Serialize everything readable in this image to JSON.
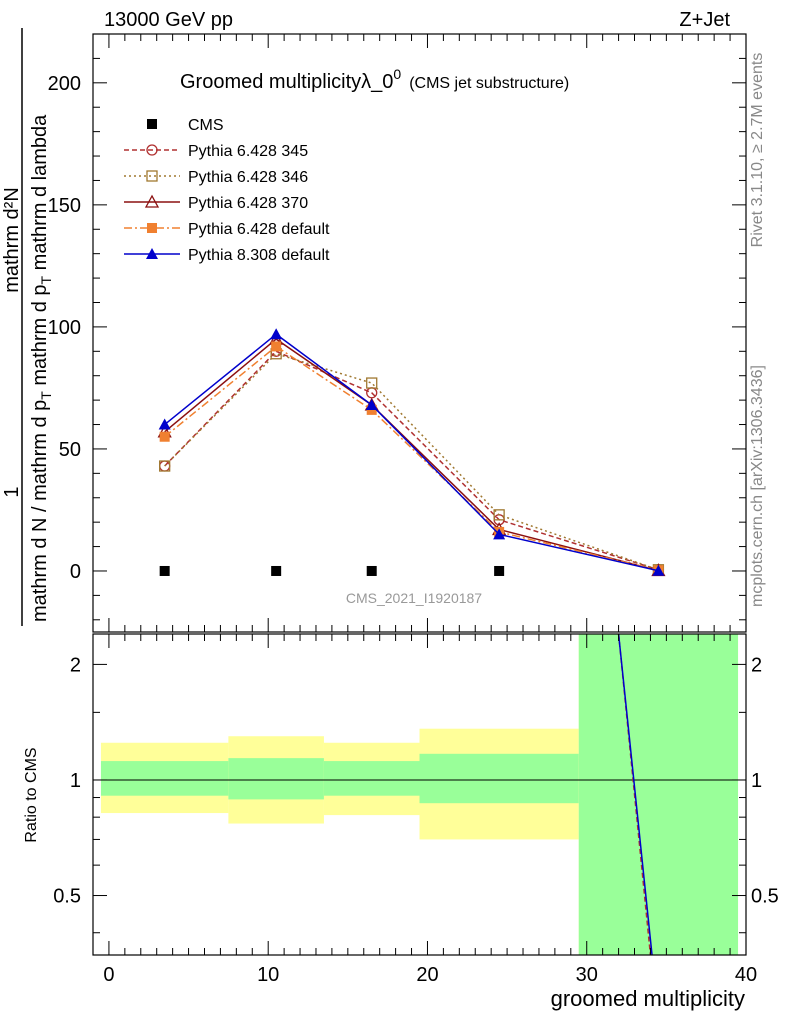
{
  "header": {
    "left": "13000 GeV pp",
    "right": "Z+Jet"
  },
  "title": {
    "main": "Groomed multiplicityλ_0",
    "superscript": "0",
    "sub": "(CMS jet substructure)"
  },
  "side_label_top": "Rivet 3.1.10, ≥ 2.7M events",
  "side_label_bottom": "mcplots.cern.ch [arXiv:1306.3436]",
  "watermark": "CMS_2021_I1920187",
  "ylabel_parts": {
    "numerator": "1",
    "num_tail": "mathrm d²N",
    "main": "mathrm d N / mathrm d p",
    "sub_t": "T",
    "main_tail": " mathrm d p",
    "sub_t2": "T",
    "main_tail2": " mathrm d lambda"
  },
  "ratio_ylabel": "Ratio to CMS",
  "xlabel": "groomed multiplicity",
  "colors": {
    "cms": "#000000",
    "p6_345": "#b03030",
    "p6_346": "#a07830",
    "p6_370": "#8b1010",
    "p6_default": "#f08030",
    "p8_default": "#0000cc",
    "band_inner": "#99ff99",
    "band_outer": "#ffff99"
  },
  "chart_data": [
    {
      "type": "line",
      "panel": "main",
      "xlim": [
        -1,
        40
      ],
      "ylim": [
        -25,
        220
      ],
      "yticks": [
        0,
        50,
        100,
        150,
        200
      ],
      "legend": "top-left",
      "series": [
        {
          "name": "CMS",
          "style": "square",
          "x": [
            3.5,
            10.5,
            16.5,
            24.5,
            34.5
          ],
          "y": [
            0,
            0,
            0,
            0,
            0
          ]
        },
        {
          "name": "Pythia 6.428 345",
          "style": "circle-dashed",
          "x": [
            3.5,
            10.5,
            16.5,
            24.5,
            34.5
          ],
          "y": [
            43,
            90,
            73,
            21,
            0.5
          ]
        },
        {
          "name": "Pythia 6.428 346",
          "style": "square-open-dotted",
          "x": [
            3.5,
            10.5,
            16.5,
            24.5,
            34.5
          ],
          "y": [
            43,
            89,
            77,
            23,
            0.5
          ]
        },
        {
          "name": "Pythia 6.428 370",
          "style": "triangle-open-solid",
          "x": [
            3.5,
            10.5,
            16.5,
            24.5,
            34.5
          ],
          "y": [
            57,
            95,
            68,
            17,
            0.2
          ]
        },
        {
          "name": "Pythia 6.428 default",
          "style": "square-filled-dashdot",
          "x": [
            3.5,
            10.5,
            16.5,
            24.5,
            34.5
          ],
          "y": [
            55,
            92,
            66,
            16,
            0.3
          ]
        },
        {
          "name": "Pythia 8.308 default",
          "style": "triangle-filled-solid",
          "x": [
            3.5,
            10.5,
            16.5,
            24.5,
            34.5
          ],
          "y": [
            60,
            97,
            68,
            15,
            0.1
          ]
        }
      ]
    },
    {
      "type": "area",
      "panel": "ratio",
      "xlim": [
        -1,
        40
      ],
      "ylim": [
        0.35,
        2.4
      ],
      "yticks": [
        0.5,
        1,
        2
      ],
      "xticks": [
        0,
        10,
        20,
        30,
        40
      ],
      "reference": 1,
      "bands": [
        {
          "x0": -0.5,
          "x1": 7.5,
          "inner": [
            0.91,
            1.12
          ],
          "outer": [
            0.82,
            1.25
          ]
        },
        {
          "x0": 7.5,
          "x1": 13.5,
          "inner": [
            0.89,
            1.14
          ],
          "outer": [
            0.77,
            1.3
          ]
        },
        {
          "x0": 13.5,
          "x1": 19.5,
          "inner": [
            0.91,
            1.12
          ],
          "outer": [
            0.81,
            1.25
          ]
        },
        {
          "x0": 19.5,
          "x1": 29.5,
          "inner": [
            0.87,
            1.17
          ],
          "outer": [
            0.7,
            1.36
          ]
        },
        {
          "x0": 29.5,
          "x1": 39.5,
          "inner": [
            0.35,
            2.4
          ],
          "outer": [
            0.35,
            2.4
          ]
        }
      ],
      "ratio_lines": [
        {
          "name": "Pythia 6.428 345",
          "x": [
            32.0,
            34.0
          ],
          "y": [
            2.4,
            0.35
          ]
        },
        {
          "name": "Pythia 8.308 default",
          "x": [
            32.0,
            34.1
          ],
          "y": [
            2.4,
            0.35
          ]
        }
      ]
    }
  ]
}
